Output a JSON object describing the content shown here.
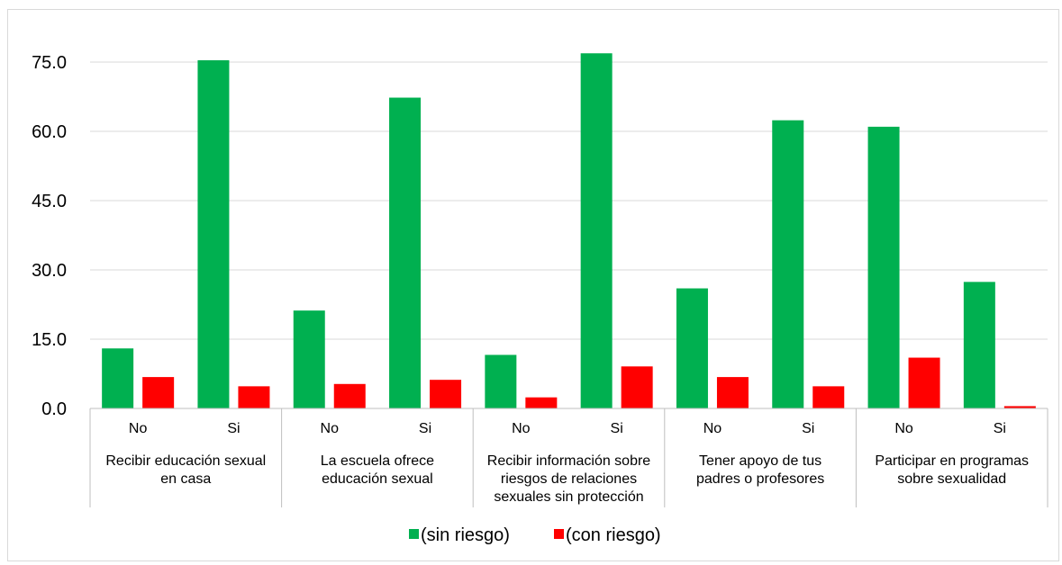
{
  "chart_data": {
    "type": "bar",
    "title": "",
    "xlabel": "",
    "ylabel": "",
    "ylim": [
      0,
      75
    ],
    "yticks": [
      "0.0",
      "15.0",
      "30.0",
      "45.0",
      "60.0",
      "75.0"
    ],
    "ytick_values": [
      0,
      15,
      30,
      45,
      60,
      75
    ],
    "grid": true,
    "legend_position": "bottom",
    "groups": [
      {
        "label": [
          "Recibir educación sexual",
          "en casa"
        ],
        "categories": [
          "No",
          "Si"
        ]
      },
      {
        "label": [
          "La escuela ofrece",
          "educación sexual"
        ],
        "categories": [
          "No",
          "Si"
        ]
      },
      {
        "label": [
          "Recibir información sobre",
          "riesgos de relaciones",
          "sexuales sin protección"
        ],
        "categories": [
          "No",
          "Si"
        ]
      },
      {
        "label": [
          "Tener apoyo de tus",
          "padres o profesores"
        ],
        "categories": [
          "No",
          "Si"
        ]
      },
      {
        "label": [
          "Participar en programas",
          "sobre sexualidad"
        ],
        "categories": [
          "No",
          "Si"
        ]
      }
    ],
    "series": [
      {
        "name": "(sin riesgo)",
        "color": "#00b050",
        "values": [
          13.0,
          75.4,
          21.2,
          67.3,
          11.6,
          76.9,
          26.0,
          62.4,
          61.0,
          27.4
        ]
      },
      {
        "name": "(con riesgo)",
        "color": "#ff0000",
        "values": [
          6.8,
          4.8,
          5.3,
          6.2,
          2.4,
          9.1,
          6.8,
          4.8,
          11.0,
          0.5
        ]
      }
    ]
  }
}
